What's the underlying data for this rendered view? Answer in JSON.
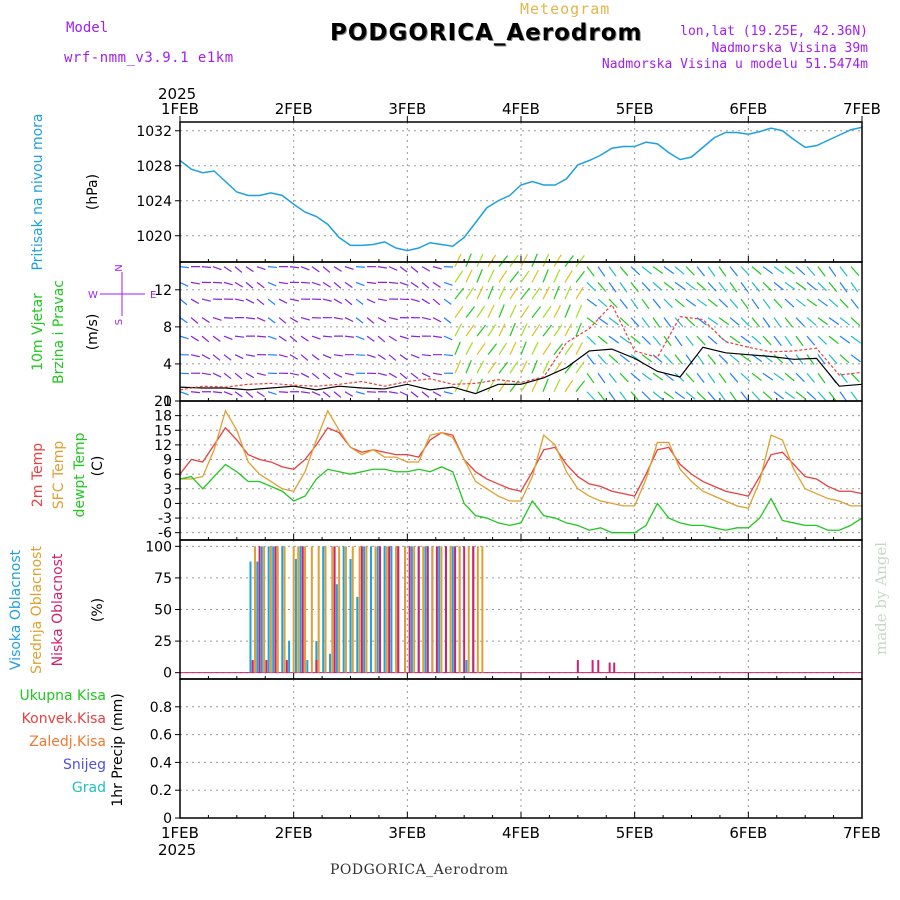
{
  "header": {
    "model_label": "Model",
    "model_name": "wrf-nmm_v3.9.1 e1km",
    "meteogram_label": "Meteogram",
    "station": "PODGORICA_Aerodrom",
    "coords": "lon,lat (19.25E, 42.36N)",
    "elevation": "Nadmorska Visina 39m",
    "elevation_model": "Nadmorska Visina u modelu 51.5474m"
  },
  "footer": {
    "station": "PODGORICA_Aerodrom",
    "credit": "made by Angel"
  },
  "colors": {
    "pressure": "#1ea0e0",
    "temp2m": "#e84040",
    "sfc": "#e0a030",
    "dewpt": "#20c820",
    "high_cloud": "#20a0e0",
    "mid_cloud": "#e0a030",
    "low_cloud": "#d02070",
    "wind_black": "#000000",
    "wind_red": "#e84040",
    "violet": "#a020f0"
  },
  "chart_data": [
    {
      "type": "line",
      "id": "pressure",
      "ylabel": "(hPa)",
      "side_labels": [
        "Pritisak na nivou mora"
      ],
      "ylim": [
        1017,
        1033
      ],
      "yticks": [
        1020,
        1024,
        1028,
        1032
      ],
      "xlim": [
        0,
        6
      ],
      "grid": true,
      "x": [
        0,
        0.1,
        0.2,
        0.3,
        0.4,
        0.5,
        0.6,
        0.7,
        0.8,
        0.9,
        1.0,
        1.1,
        1.2,
        1.3,
        1.4,
        1.5,
        1.6,
        1.7,
        1.8,
        1.9,
        2.0,
        2.1,
        2.2,
        2.3,
        2.4,
        2.5,
        2.6,
        2.7,
        2.8,
        2.9,
        3.0,
        3.1,
        3.2,
        3.3,
        3.4,
        3.5,
        3.6,
        3.7,
        3.8,
        3.9,
        4.0,
        4.1,
        4.2,
        4.3,
        4.4,
        4.5,
        4.6,
        4.7,
        4.8,
        4.9,
        5.0,
        5.1,
        5.2,
        5.3,
        5.4,
        5.5,
        5.6,
        5.7,
        5.8,
        5.9,
        6.0
      ],
      "values": [
        1028.6,
        1027.6,
        1027.2,
        1027.4,
        1026.2,
        1025.0,
        1024.6,
        1024.6,
        1024.9,
        1024.6,
        1023.6,
        1022.7,
        1022.2,
        1021.3,
        1019.8,
        1018.9,
        1018.9,
        1019.0,
        1019.3,
        1018.6,
        1018.3,
        1018.6,
        1019.2,
        1019.0,
        1018.8,
        1019.8,
        1021.5,
        1023.2,
        1024.0,
        1024.6,
        1025.8,
        1026.2,
        1025.8,
        1025.8,
        1026.5,
        1028.1,
        1028.6,
        1029.2,
        1030.0,
        1030.2,
        1030.2,
        1030.7,
        1030.5,
        1029.5,
        1028.7,
        1029.0,
        1030.1,
        1031.2,
        1031.8,
        1031.8,
        1031.6,
        1031.9,
        1032.3,
        1032.0,
        1031.0,
        1030.1,
        1030.3,
        1030.9,
        1031.5,
        1032.1,
        1032.4
      ]
    },
    {
      "type": "line",
      "id": "wind",
      "ylabel": "(m/s)",
      "side_labels": [
        "10m Vjetar",
        "Brzina i Pravac"
      ],
      "direction_key": [
        "N",
        "W",
        "E",
        "S"
      ],
      "ylim": [
        0,
        15
      ],
      "yticks": [
        0,
        4,
        8,
        12
      ],
      "xlim": [
        0,
        6
      ],
      "grid": true,
      "x": [
        0,
        0.2,
        0.4,
        0.6,
        0.8,
        1.0,
        1.2,
        1.4,
        1.6,
        1.8,
        2.0,
        2.2,
        2.4,
        2.6,
        2.8,
        3.0,
        3.2,
        3.4,
        3.6,
        3.8,
        4.0,
        4.2,
        4.4,
        4.6,
        4.8,
        5.0,
        5.2,
        5.4,
        5.6,
        5.8,
        6.0
      ],
      "series": [
        {
          "values": [
            1.5,
            1.4,
            1.4,
            1.2,
            1.4,
            1.6,
            1.2,
            1.6,
            1.4,
            1.3,
            1.8,
            1.2,
            1.5,
            0.8,
            1.8,
            1.8,
            2.5,
            3.6,
            5.4,
            5.6,
            4.6,
            3.2,
            2.6,
            5.8,
            5.2,
            5.0,
            4.8,
            4.5,
            4.6,
            1.6,
            1.8
          ]
        },
        {
          "values": [
            1.2,
            1.6,
            1.5,
            1.8,
            1.9,
            1.7,
            1.6,
            1.8,
            2.1,
            1.6,
            2.1,
            2.4,
            1.8,
            1.9,
            2.3,
            2.0,
            2.6,
            6.3,
            7.8,
            10.4,
            5.4,
            4.7,
            9.1,
            8.8,
            6.4,
            5.8,
            5.3,
            5.4,
            5.7,
            2.8,
            3.1
          ]
        }
      ]
    },
    {
      "type": "line",
      "id": "temperature",
      "ylabel": "(C)",
      "side_labels": [
        "2m Temp",
        "SFC Temp",
        "dewpt Temp"
      ],
      "ylim": [
        -7.5,
        21
      ],
      "yticks": [
        -6,
        -3,
        0,
        3,
        6,
        9,
        12,
        15,
        18,
        21
      ],
      "xlim": [
        0,
        6
      ],
      "grid": true,
      "x": [
        0,
        0.1,
        0.2,
        0.3,
        0.4,
        0.5,
        0.6,
        0.7,
        0.8,
        0.9,
        1.0,
        1.1,
        1.2,
        1.3,
        1.4,
        1.5,
        1.6,
        1.7,
        1.8,
        1.9,
        2.0,
        2.1,
        2.2,
        2.3,
        2.4,
        2.5,
        2.6,
        2.7,
        2.8,
        2.9,
        3.0,
        3.1,
        3.2,
        3.3,
        3.4,
        3.5,
        3.6,
        3.7,
        3.8,
        3.9,
        4.0,
        4.1,
        4.2,
        4.3,
        4.4,
        4.5,
        4.6,
        4.7,
        4.8,
        4.9,
        5.0,
        5.1,
        5.2,
        5.3,
        5.4,
        5.5,
        5.6,
        5.7,
        5.8,
        5.9,
        6.0
      ],
      "series": [
        {
          "name": "2m Temp",
          "values": [
            6.0,
            9.0,
            8.5,
            12.0,
            15.5,
            13.0,
            10.0,
            9.0,
            8.5,
            7.5,
            7.0,
            9.0,
            12.0,
            15.5,
            14.5,
            11.5,
            10.5,
            11.0,
            10.5,
            10.0,
            10.0,
            9.5,
            13.0,
            14.5,
            14.0,
            9.0,
            6.5,
            5.0,
            4.0,
            3.0,
            2.5,
            6.5,
            11.0,
            11.5,
            8.0,
            5.5,
            4.0,
            3.5,
            2.5,
            2.0,
            1.5,
            6.0,
            11.0,
            11.5,
            8.0,
            6.0,
            4.5,
            3.5,
            2.5,
            2.0,
            1.5,
            5.5,
            10.0,
            10.5,
            8.0,
            5.5,
            5.0,
            3.5,
            2.5,
            2.5,
            2.0
          ]
        },
        {
          "name": "SFC Temp",
          "values": [
            5.0,
            5.0,
            5.5,
            11.0,
            19.0,
            15.0,
            8.5,
            6.0,
            4.5,
            3.0,
            2.5,
            6.5,
            13.0,
            19.0,
            15.0,
            11.5,
            10.0,
            11.0,
            9.5,
            9.5,
            8.5,
            8.5,
            14.0,
            14.5,
            13.5,
            9.0,
            4.5,
            3.0,
            1.5,
            0.5,
            0.5,
            5.5,
            14.0,
            12.0,
            6.5,
            3.0,
            1.5,
            0.5,
            0.0,
            -0.5,
            -0.5,
            5.0,
            12.5,
            12.5,
            7.0,
            4.5,
            2.5,
            1.5,
            0.5,
            -0.5,
            -1.0,
            4.5,
            14.0,
            13.0,
            7.0,
            3.0,
            2.0,
            1.0,
            0.5,
            -0.5,
            -0.5
          ]
        },
        {
          "name": "dewpt Temp",
          "values": [
            5.0,
            5.5,
            3.0,
            5.5,
            8.0,
            6.5,
            4.5,
            4.5,
            3.5,
            2.5,
            0.5,
            1.5,
            5.0,
            7.0,
            6.5,
            6.0,
            6.5,
            7.0,
            7.0,
            6.5,
            6.5,
            7.0,
            6.5,
            7.5,
            6.5,
            0.0,
            -2.5,
            -3.0,
            -4.0,
            -4.5,
            -4.0,
            0.5,
            -2.5,
            -3.0,
            -4.0,
            -4.5,
            -5.5,
            -5.0,
            -6.0,
            -6.0,
            -6.0,
            -4.5,
            0.0,
            -3.0,
            -4.0,
            -4.5,
            -4.5,
            -5.0,
            -5.5,
            -5.0,
            -5.0,
            -3.0,
            1.0,
            -3.5,
            -4.0,
            -4.5,
            -4.5,
            -5.5,
            -5.5,
            -4.5,
            -3.0
          ]
        }
      ]
    },
    {
      "type": "bar",
      "id": "cloud",
      "ylabel": "(%)",
      "side_labels": [
        "Visoka Oblacnost",
        "Srednja Oblacnost",
        "Niska Oblacnost"
      ],
      "ylim": [
        -5,
        105
      ],
      "yticks": [
        0,
        25,
        50,
        75,
        100
      ],
      "xlim": [
        0,
        6
      ],
      "grid": true,
      "series": [
        {
          "name": "Visoka Oblacnost",
          "x": [
            0.62,
            0.68,
            0.72,
            0.78,
            0.82,
            0.9,
            0.96,
            1.02,
            1.06,
            1.12,
            1.2,
            1.26,
            1.32,
            1.38,
            1.44,
            1.5,
            1.56,
            1.62,
            1.68,
            1.74,
            1.8,
            1.86,
            1.92,
            1.98,
            2.04,
            2.1,
            2.16,
            2.22,
            2.28,
            2.34,
            2.4,
            2.46,
            2.52,
            2.58
          ],
          "values": [
            88,
            88,
            100,
            100,
            100,
            100,
            25,
            90,
            100,
            10,
            25,
            100,
            15,
            70,
            100,
            90,
            60,
            100,
            100,
            100,
            100,
            100,
            100,
            100,
            100,
            100,
            100,
            100,
            100,
            100,
            100,
            100,
            10,
            100
          ]
        },
        {
          "name": "Srednja Oblacnost",
          "x": [
            0.66,
            0.74,
            0.8,
            0.86,
            0.92,
            1.0,
            1.04,
            1.1,
            1.16,
            1.22,
            1.28,
            1.34,
            1.4,
            1.46,
            1.52,
            1.58,
            1.64,
            1.72,
            1.82,
            1.9,
            1.98,
            2.06,
            2.14,
            2.22,
            2.3,
            2.38,
            2.46,
            2.54,
            2.62,
            2.66
          ],
          "values": [
            100,
            100,
            100,
            100,
            100,
            100,
            100,
            100,
            100,
            100,
            100,
            100,
            100,
            100,
            100,
            100,
            100,
            100,
            100,
            100,
            100,
            100,
            100,
            100,
            100,
            100,
            100,
            100,
            100,
            100
          ]
        },
        {
          "name": "Niska Oblacnost",
          "x": [
            0.64,
            0.7,
            0.76,
            0.84,
            0.94,
            1.08,
            1.2,
            1.36,
            1.6,
            1.76,
            1.84,
            1.92,
            2.02,
            2.1,
            2.18,
            2.26,
            2.34,
            2.42,
            2.5,
            2.58,
            3.5,
            3.63,
            3.68,
            3.78,
            3.82
          ],
          "values": [
            10,
            100,
            10,
            100,
            10,
            100,
            10,
            100,
            100,
            100,
            100,
            100,
            100,
            100,
            100,
            100,
            100,
            100,
            100,
            100,
            10,
            10,
            10,
            8,
            8
          ]
        }
      ]
    },
    {
      "type": "line",
      "id": "precip",
      "ylabel": "1hr Precip (mm)",
      "side_labels": [
        "Ukupna Kisa",
        "Konvek.Kisa",
        "Zaledj.Kisa",
        "Snijeg",
        "Grad"
      ],
      "ylim": [
        0,
        1.0
      ],
      "yticks": [
        0,
        0.2,
        0.4,
        0.6,
        0.8
      ],
      "ytick_labels": [
        "0",
        "0.2",
        "0.4",
        "0.6",
        "0.8"
      ],
      "xlim": [
        0,
        6
      ],
      "grid": true,
      "series": [
        {
          "name": "Ukupna Kisa",
          "values": []
        },
        {
          "name": "Konvek.Kisa",
          "values": []
        },
        {
          "name": "Zaledj.Kisa",
          "values": []
        },
        {
          "name": "Snijeg",
          "values": []
        },
        {
          "name": "Grad",
          "values": []
        }
      ]
    }
  ],
  "x_axis": {
    "year_top": "2025",
    "year_bottom": "2025",
    "tick_labels": [
      "1FEB",
      "2FEB",
      "3FEB",
      "4FEB",
      "5FEB",
      "6FEB",
      "7FEB"
    ]
  }
}
